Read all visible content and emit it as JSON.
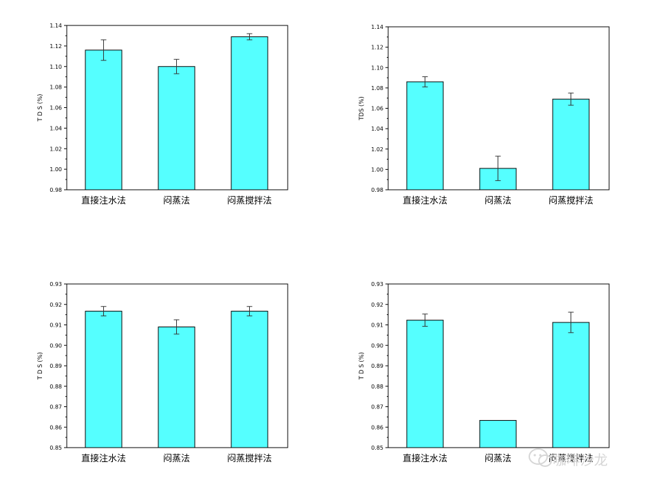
{
  "colors": {
    "bar_fill": "#55ffff",
    "bar_stroke": "#000000",
    "axis": "#000000"
  },
  "watermark": {
    "text": "咖啡沙龙",
    "icon": "chat-bubble-icon"
  },
  "chart_data": [
    {
      "type": "bar",
      "categories": [
        "直接注水法",
        "闷蒸法",
        "闷蒸搅拌法"
      ],
      "values": [
        1.116,
        1.1,
        1.129
      ],
      "errors": [
        0.01,
        0.007,
        0.003
      ],
      "ylabel": "T D S (%)",
      "ylim": [
        0.98,
        1.14
      ],
      "yticks": [
        "0.98",
        "1.00",
        "1.02",
        "1.04",
        "1.06",
        "1.08",
        "1.10",
        "1.12",
        "1.14"
      ]
    },
    {
      "type": "bar",
      "categories": [
        "直接注水法",
        "闷蒸法",
        "闷蒸搅拌法"
      ],
      "values": [
        1.086,
        1.001,
        1.069
      ],
      "errors": [
        0.005,
        0.012,
        0.006
      ],
      "ylabel": "TDS (%)",
      "ylim": [
        0.98,
        1.14
      ],
      "yticks": [
        "0.98",
        "1.00",
        "1.02",
        "1.04",
        "1.06",
        "1.08",
        "1.10",
        "1.12",
        "1.14"
      ]
    },
    {
      "type": "bar",
      "categories": [
        "直接注水法",
        "闷蒸法",
        "闷蒸搅拌法"
      ],
      "values": [
        0.9167,
        0.909,
        0.9167
      ],
      "errors": [
        0.0023,
        0.0035,
        0.0023
      ],
      "ylabel": "T D S (%)",
      "ylim": [
        0.85,
        0.93
      ],
      "yticks": [
        "0.85",
        "0.86",
        "0.87",
        "0.88",
        "0.89",
        "0.90",
        "0.91",
        "0.92",
        "0.93"
      ]
    },
    {
      "type": "bar",
      "categories": [
        "直接注水法",
        "闷蒸法",
        "闷蒸搅拌法"
      ],
      "values": [
        0.9123,
        0.8633,
        0.9112
      ],
      "errors": [
        0.003,
        0.0,
        0.005
      ],
      "ylabel": "T D S (%)",
      "ylim": [
        0.85,
        0.93
      ],
      "yticks": [
        "0.85",
        "0.86",
        "0.87",
        "0.88",
        "0.89",
        "0.90",
        "0.91",
        "0.92",
        "0.93"
      ]
    }
  ]
}
